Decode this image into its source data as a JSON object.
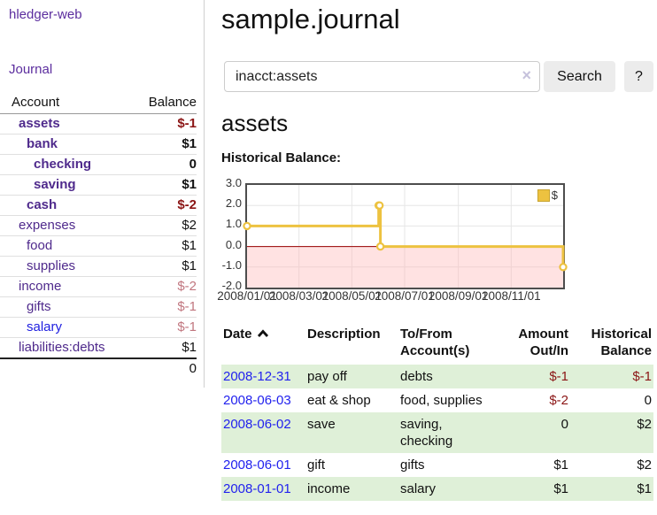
{
  "app": {
    "title": "hledger-web"
  },
  "sidebar": {
    "nav_journal": "Journal",
    "accounts_table": {
      "header_account": "Account",
      "header_balance": "Balance",
      "rows": [
        {
          "name": "assets",
          "balance": "$-1",
          "indent": 1,
          "bold": true,
          "balance_style": "neg-strong"
        },
        {
          "name": "bank",
          "balance": "$1",
          "indent": 2,
          "bold": true,
          "balance_style": "pos-strong"
        },
        {
          "name": "checking",
          "balance": "0",
          "indent": 3,
          "bold": true,
          "balance_style": "pos-strong"
        },
        {
          "name": "saving",
          "balance": "$1",
          "indent": 3,
          "bold": true,
          "balance_style": "pos-strong"
        },
        {
          "name": "cash",
          "balance": "$-2",
          "indent": 2,
          "bold": true,
          "balance_style": "neg-strong"
        },
        {
          "name": "expenses",
          "balance": "$2",
          "indent": 1,
          "bold": false,
          "balance_style": "pos"
        },
        {
          "name": "food",
          "balance": "$1",
          "indent": 2,
          "bold": false,
          "balance_style": "pos"
        },
        {
          "name": "supplies",
          "balance": "$1",
          "indent": 2,
          "bold": false,
          "balance_style": "pos"
        },
        {
          "name": "income",
          "balance": "$-2",
          "indent": 1,
          "bold": false,
          "balance_style": "neg-dim"
        },
        {
          "name": "gifts",
          "balance": "$-1",
          "indent": 2,
          "bold": false,
          "balance_style": "neg-dim"
        },
        {
          "name": "salary",
          "balance": "$-1",
          "indent": 2,
          "bold": false,
          "balance_style": "neg-dim",
          "link_color": "blue"
        },
        {
          "name": "liabilities:debts",
          "balance": "$1",
          "indent": 1,
          "bold": false,
          "balance_style": "pos"
        }
      ],
      "total": "0"
    }
  },
  "main": {
    "title": "sample.journal",
    "search": {
      "value": "inacct:assets",
      "clear_icon": "×",
      "button": "Search",
      "help_button": "?"
    },
    "account_heading": "assets",
    "chart_label": "Historical Balance:"
  },
  "chart_data": {
    "type": "line",
    "title": "Historical Balance",
    "step": true,
    "series": [
      {
        "name": "$",
        "color": "#edc240",
        "points": [
          [
            "2008/01/01",
            1
          ],
          [
            "2008/06/01",
            2
          ],
          [
            "2008/06/02",
            2
          ],
          [
            "2008/06/03",
            0
          ],
          [
            "2008/12/31",
            -1
          ]
        ]
      }
    ],
    "x_ticks": [
      "2008/01/01",
      "2008/03/01",
      "2008/05/01",
      "2008/07/01",
      "2008/09/01",
      "2008/11/01"
    ],
    "y_ticks": [
      3.0,
      2.0,
      1.0,
      0.0,
      -1.0,
      -2.0
    ],
    "y_tick_labels": [
      "3.0",
      "2.0",
      "1.0",
      "0.0",
      "-1.0",
      "-2.0"
    ],
    "ylim": [
      -2,
      3
    ],
    "xlim": [
      "2008/01/01",
      "2008/12/31"
    ],
    "grid": true,
    "negative_region_color": "#ffb3b3",
    "zero_line_color": "#990000",
    "legend": {
      "label": "$",
      "position": "top-right"
    }
  },
  "register_table": {
    "columns": [
      {
        "lines": [
          "Date"
        ],
        "align": "left",
        "sorted": "asc"
      },
      {
        "lines": [
          "Description"
        ],
        "align": "left"
      },
      {
        "lines": [
          "To/From",
          "Account(s)"
        ],
        "align": "left"
      },
      {
        "lines": [
          "Amount",
          "Out/In"
        ],
        "align": "right"
      },
      {
        "lines": [
          "Historical",
          "Balance"
        ],
        "align": "right"
      }
    ],
    "rows": [
      {
        "date": "2008-12-31",
        "description": "pay off",
        "accounts": "debts",
        "amount": "$-1",
        "amount_neg": true,
        "balance": "$-1",
        "balance_neg": true
      },
      {
        "date": "2008-06-03",
        "description": "eat & shop",
        "accounts": "food, supplies",
        "amount": "$-2",
        "amount_neg": true,
        "balance": "0",
        "balance_neg": false
      },
      {
        "date": "2008-06-02",
        "description": "save",
        "accounts": "saving, checking",
        "amount": "0",
        "amount_neg": false,
        "balance": "$2",
        "balance_neg": false
      },
      {
        "date": "2008-06-01",
        "description": "gift",
        "accounts": "gifts",
        "amount": "$1",
        "amount_neg": false,
        "balance": "$2",
        "balance_neg": false
      },
      {
        "date": "2008-01-01",
        "description": "income",
        "accounts": "salary",
        "amount": "$1",
        "amount_neg": false,
        "balance": "$1",
        "balance_neg": false
      }
    ]
  }
}
